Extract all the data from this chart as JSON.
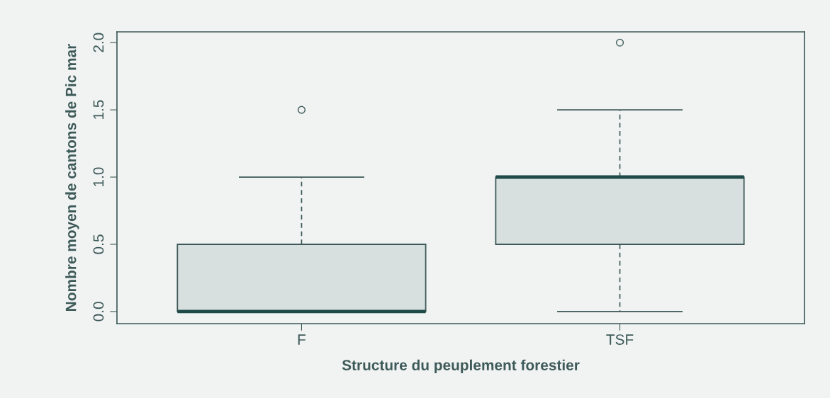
{
  "chart_data": {
    "type": "box",
    "xlabel": "Structure du peuplement forestier",
    "ylabel": "Nombre moyen de cantons de Pic mar",
    "categories": [
      "F",
      "TSF"
    ],
    "boxes": [
      {
        "low": 0,
        "q1": 0,
        "median": 0,
        "q3": 0.5,
        "high": 1.0,
        "outliers": [
          1.5
        ]
      },
      {
        "low": 0,
        "q1": 0.5,
        "median": 1.0,
        "q3": 1.0,
        "high": 1.5,
        "outliers": [
          2.0
        ]
      }
    ],
    "color": "#d8e0df",
    "ylim": [
      -0.09,
      2.08
    ],
    "yticks": [
      {
        "value": 0,
        "label": "0.0"
      },
      {
        "value": 0.5,
        "label": "0.5"
      },
      {
        "value": 1,
        "label": "1.0"
      },
      {
        "value": 1.5,
        "label": "1.5"
      },
      {
        "value": 2,
        "label": "2.0"
      }
    ],
    "grid": false
  }
}
